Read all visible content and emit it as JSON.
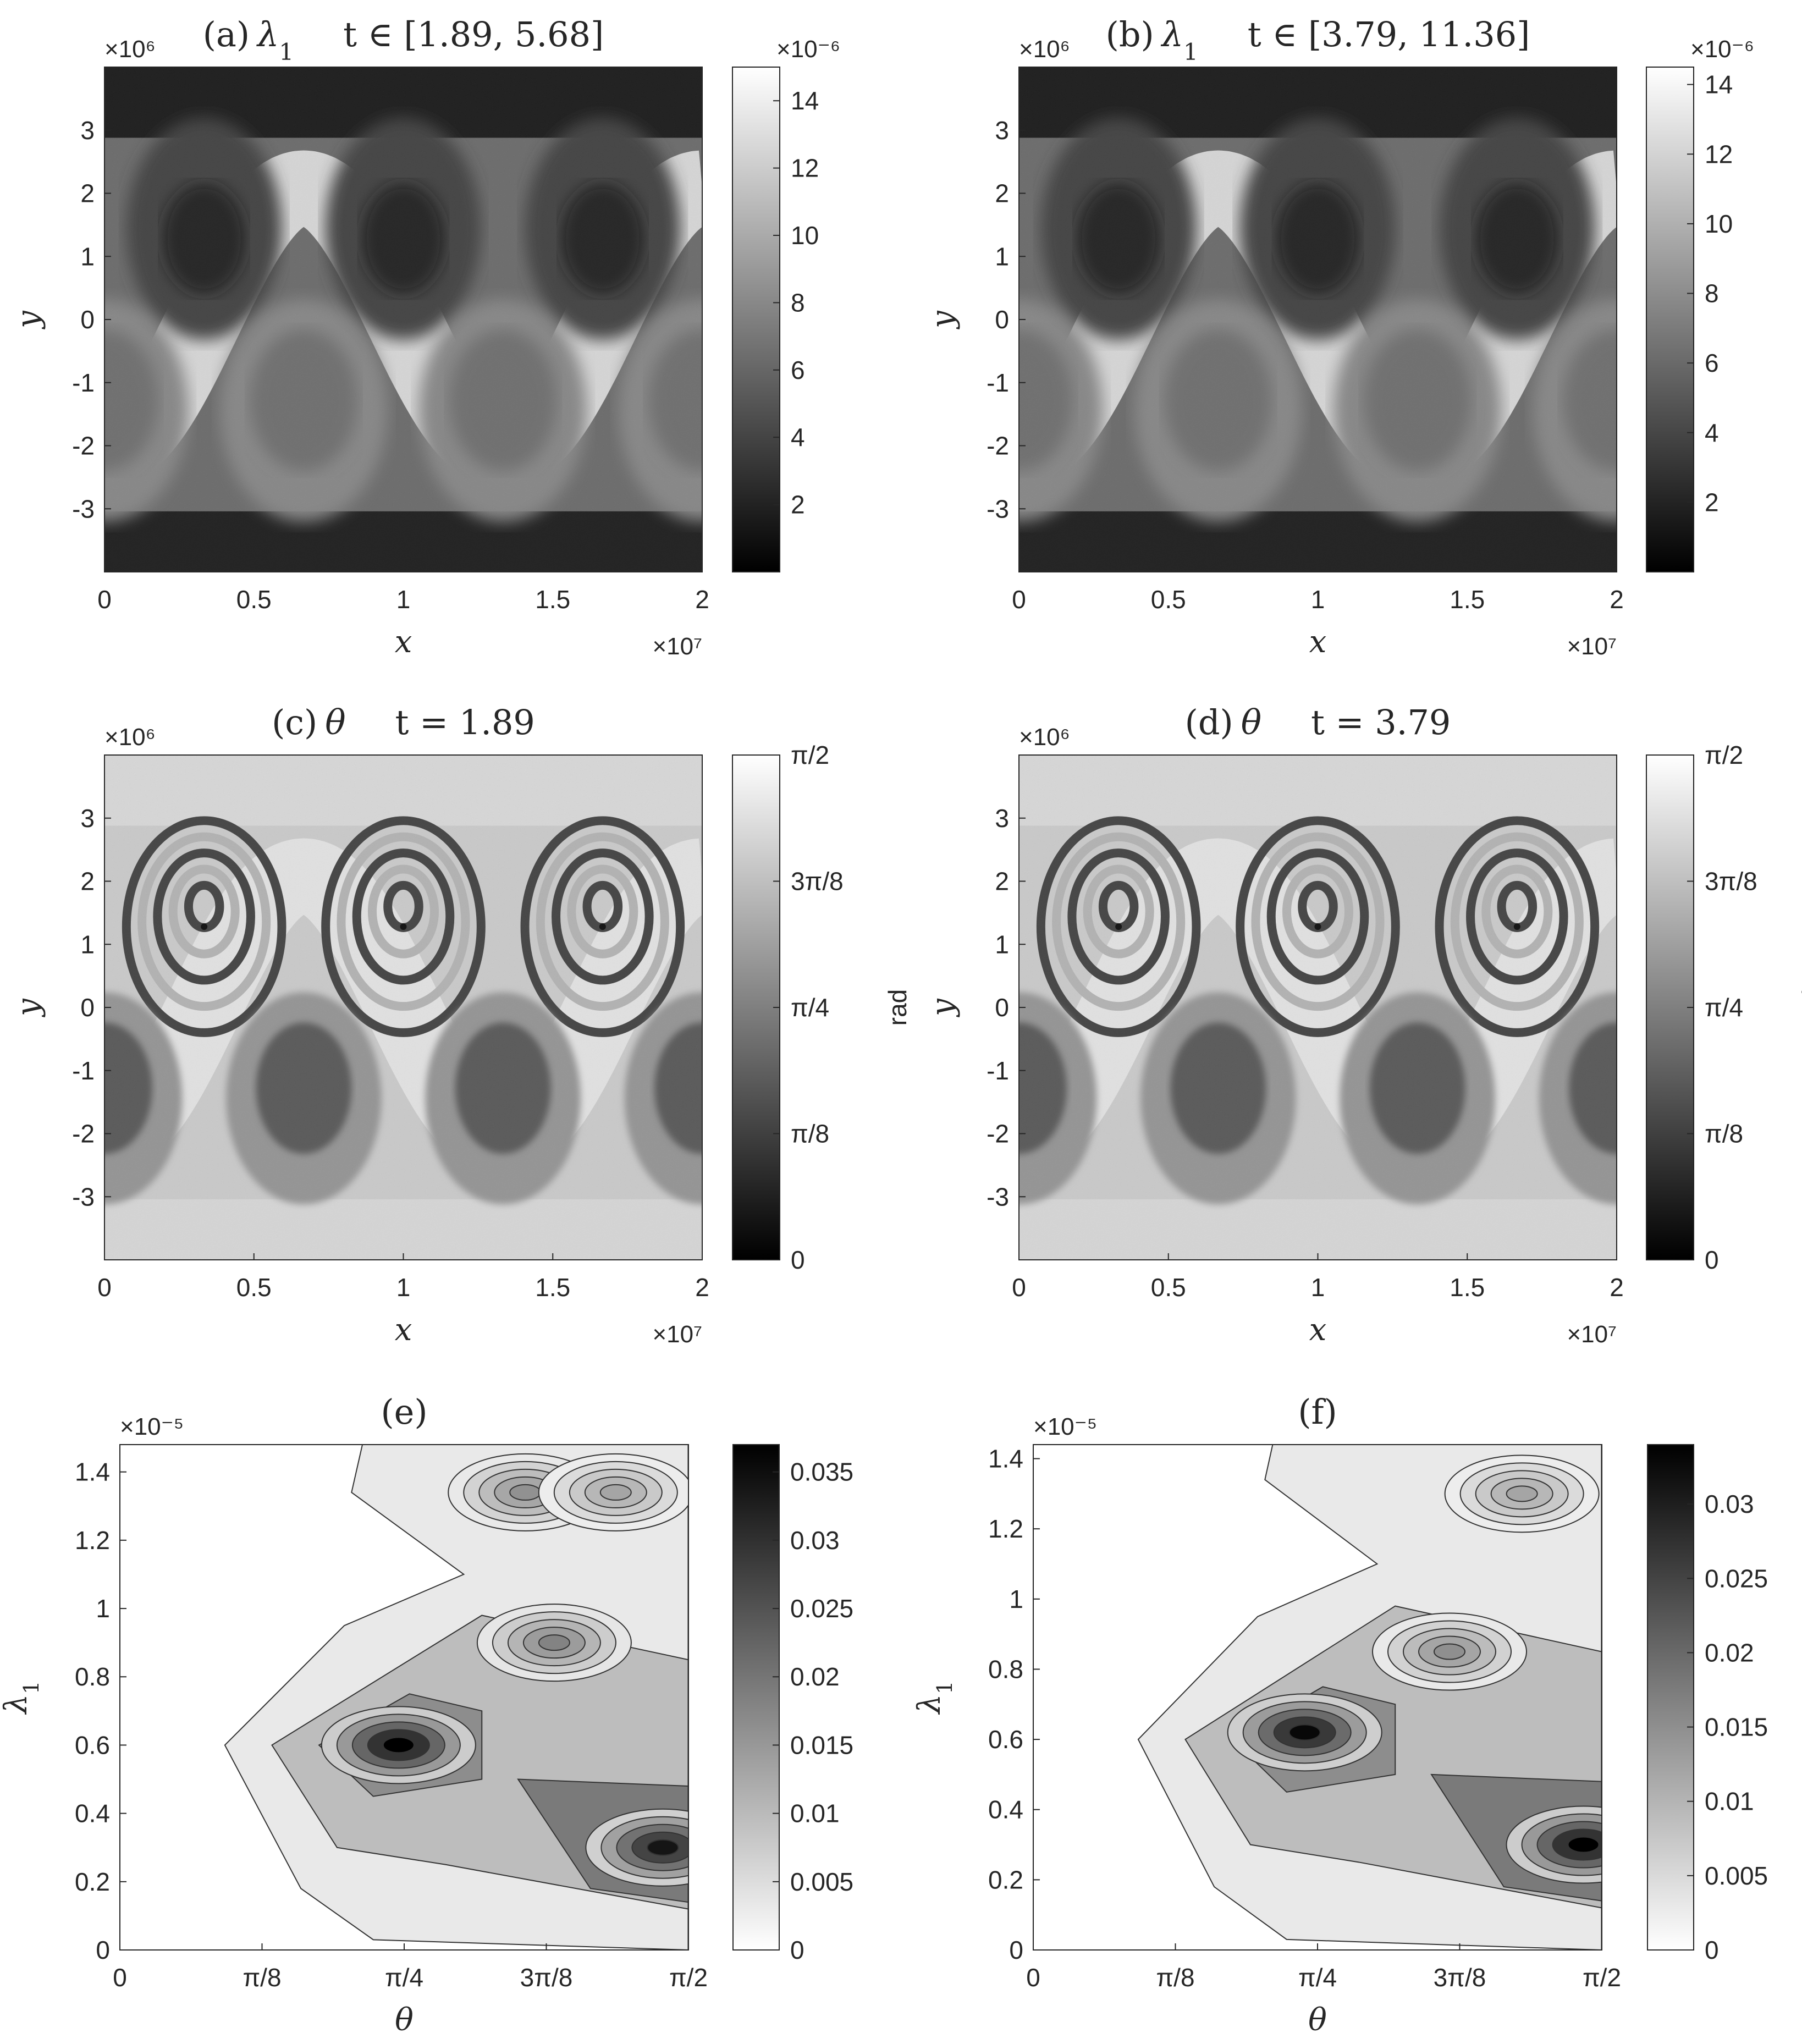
{
  "panels": [
    {
      "id": "a",
      "kind": "field-lambda",
      "title_label": "(a)",
      "title_symbol": "λ",
      "title_subscript": "1",
      "title_time": "t ∈ [1.89,  5.68]",
      "x_label": "x",
      "y_label": "y",
      "x_exponent": "×10⁷",
      "y_exponent": "×10⁶",
      "x_ticks": [
        "0",
        "0.5",
        "1",
        "1.5",
        "2"
      ],
      "y_ticks": [
        "-3",
        "-2",
        "-1",
        "0",
        "1",
        "2",
        "3"
      ],
      "colorbar_exponent": "×10⁻⁶",
      "colorbar_ticks": [
        "2",
        "4",
        "6",
        "8",
        "10",
        "12",
        "14"
      ],
      "colorbar_label": ""
    },
    {
      "id": "b",
      "kind": "field-lambda",
      "title_label": "(b)",
      "title_symbol": "λ",
      "title_subscript": "1",
      "title_time": "t ∈ [3.79,  11.36]",
      "x_label": "x",
      "y_label": "y",
      "x_exponent": "×10⁷",
      "y_exponent": "×10⁶",
      "x_ticks": [
        "0",
        "0.5",
        "1",
        "1.5",
        "2"
      ],
      "y_ticks": [
        "-3",
        "-2",
        "-1",
        "0",
        "1",
        "2",
        "3"
      ],
      "colorbar_exponent": "×10⁻⁶",
      "colorbar_ticks": [
        "2",
        "4",
        "6",
        "8",
        "10",
        "12",
        "14"
      ],
      "colorbar_label": ""
    },
    {
      "id": "c",
      "kind": "field-theta",
      "title_label": "(c)",
      "title_symbol": "θ",
      "title_subscript": "",
      "title_time": "t = 1.89",
      "x_label": "x",
      "y_label": "y",
      "x_exponent": "×10⁷",
      "y_exponent": "×10⁶",
      "x_ticks": [
        "0",
        "0.5",
        "1",
        "1.5",
        "2"
      ],
      "y_ticks": [
        "-3",
        "-2",
        "-1",
        "0",
        "1",
        "2",
        "3"
      ],
      "colorbar_exponent": "",
      "colorbar_ticks": [
        "0",
        "π/8",
        "π/4",
        "3π/8",
        "π/2"
      ],
      "colorbar_label": "rad"
    },
    {
      "id": "d",
      "kind": "field-theta",
      "title_label": "(d)",
      "title_symbol": "θ",
      "title_subscript": "",
      "title_time": "t = 3.79",
      "x_label": "x",
      "y_label": "y",
      "x_exponent": "×10⁷",
      "y_exponent": "×10⁶",
      "x_ticks": [
        "0",
        "0.5",
        "1",
        "1.5",
        "2"
      ],
      "y_ticks": [
        "-3",
        "-2",
        "-1",
        "0",
        "1",
        "2",
        "3"
      ],
      "colorbar_exponent": "",
      "colorbar_ticks": [
        "0",
        "π/8",
        "π/4",
        "3π/8",
        "π/2"
      ],
      "colorbar_label": "rad"
    },
    {
      "id": "e",
      "kind": "pdf",
      "title_label": "(e)",
      "title_symbol": "",
      "title_subscript": "",
      "title_time": "",
      "x_label": "θ",
      "y_label": "λ",
      "y_label_subscript": "1",
      "x_exponent": "",
      "y_exponent": "×10⁻⁵",
      "x_ticks": [
        "0",
        "π/8",
        "π/4",
        "3π/8",
        "π/2"
      ],
      "y_ticks": [
        "0",
        "0.2",
        "0.4",
        "0.6",
        "0.8",
        "1",
        "1.2",
        "1.4"
      ],
      "colorbar_exponent": "",
      "colorbar_ticks": [
        "0",
        "0.005",
        "0.01",
        "0.015",
        "0.02",
        "0.025",
        "0.03",
        "0.035"
      ],
      "colorbar_label": ""
    },
    {
      "id": "f",
      "kind": "pdf",
      "title_label": "(f)",
      "title_symbol": "",
      "title_subscript": "",
      "title_time": "",
      "x_label": "θ",
      "y_label": "λ",
      "y_label_subscript": "1",
      "x_exponent": "",
      "y_exponent": "×10⁻⁵",
      "x_ticks": [
        "0",
        "π/8",
        "π/4",
        "3π/8",
        "π/2"
      ],
      "y_ticks": [
        "0",
        "0.2",
        "0.4",
        "0.6",
        "0.8",
        "1",
        "1.2",
        "1.4"
      ],
      "colorbar_exponent": "",
      "colorbar_ticks": [
        "0",
        "0.005",
        "0.01",
        "0.015",
        "0.02",
        "0.025",
        "0.03"
      ],
      "colorbar_label": ""
    }
  ],
  "chart_data": [
    {
      "type": "heatmap",
      "panel": "a",
      "title": "(a) λ1    t ∈ [1.89,  5.68]",
      "xlabel": "x",
      "ylabel": "y",
      "x_multiplier": "×10⁷",
      "y_multiplier": "×10⁶",
      "xlim": [
        0,
        2
      ],
      "ylim": [
        -4,
        4
      ],
      "colorbar": {
        "multiplier": "×10⁻⁶",
        "range": [
          0,
          15
        ],
        "colormap": "gray"
      }
    },
    {
      "type": "heatmap",
      "panel": "b",
      "title": "(b) λ1    t ∈ [3.79,  11.36]",
      "xlabel": "x",
      "ylabel": "y",
      "x_multiplier": "×10⁷",
      "y_multiplier": "×10⁶",
      "xlim": [
        0,
        2
      ],
      "ylim": [
        -4,
        4
      ],
      "colorbar": {
        "multiplier": "×10⁻⁶",
        "range": [
          0,
          14.5
        ],
        "colormap": "gray"
      }
    },
    {
      "type": "heatmap",
      "panel": "c",
      "title": "(c) θ    t = 1.89",
      "xlabel": "x",
      "ylabel": "y",
      "x_multiplier": "×10⁷",
      "y_multiplier": "×10⁶",
      "xlim": [
        0,
        2
      ],
      "ylim": [
        -4,
        4
      ],
      "colorbar": {
        "label": "rad",
        "range": [
          0,
          1.5708
        ],
        "colormap": "gray"
      }
    },
    {
      "type": "heatmap",
      "panel": "d",
      "title": "(d) θ    t = 3.79",
      "xlabel": "x",
      "ylabel": "y",
      "x_multiplier": "×10⁷",
      "y_multiplier": "×10⁶",
      "xlim": [
        0,
        2
      ],
      "ylim": [
        -4,
        4
      ],
      "colorbar": {
        "label": "rad",
        "range": [
          0,
          1.5708
        ],
        "colormap": "gray"
      }
    },
    {
      "type": "heatmap",
      "panel": "e",
      "title": "(e)",
      "xlabel": "θ",
      "ylabel": "λ1",
      "y_multiplier": "×10⁻⁵",
      "xlim": [
        0,
        1.5708
      ],
      "ylim": [
        0,
        1.48
      ],
      "colorbar": {
        "range": [
          0,
          0.037
        ],
        "colormap": "gray-reversed"
      },
      "peaks": [
        {
          "theta": 0.77,
          "lambda": 0.6,
          "value": 0.037
        },
        {
          "theta": 1.5,
          "lambda": 0.3,
          "value": 0.034
        },
        {
          "theta": 1.2,
          "lambda": 0.9,
          "value": 0.018
        },
        {
          "theta": 1.12,
          "lambda": 1.34,
          "value": 0.016
        },
        {
          "theta": 1.37,
          "lambda": 1.34,
          "value": 0.013
        }
      ]
    },
    {
      "type": "heatmap",
      "panel": "f",
      "title": "(f)",
      "xlabel": "θ",
      "ylabel": "λ1",
      "y_multiplier": "×10⁻⁵",
      "xlim": [
        0,
        1.5708
      ],
      "ylim": [
        0,
        1.44
      ],
      "colorbar": {
        "range": [
          0,
          0.034
        ],
        "colormap": "gray-reversed"
      },
      "peaks": [
        {
          "theta": 0.75,
          "lambda": 0.62,
          "value": 0.033
        },
        {
          "theta": 1.52,
          "lambda": 0.3,
          "value": 0.034
        },
        {
          "theta": 1.15,
          "lambda": 0.85,
          "value": 0.015
        },
        {
          "theta": 1.35,
          "lambda": 1.3,
          "value": 0.012
        }
      ]
    }
  ]
}
